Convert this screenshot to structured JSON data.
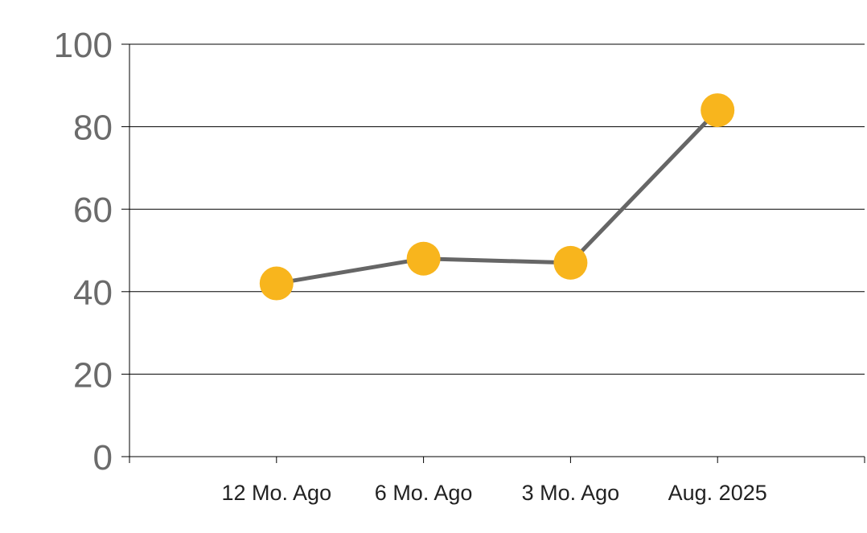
{
  "chart_data": {
    "type": "line",
    "categories": [
      "12 Mo. Ago",
      "6 Mo. Ago",
      "3 Mo. Ago",
      "Aug. 2025"
    ],
    "series": [
      {
        "values": [
          42,
          48,
          47,
          84
        ]
      }
    ],
    "title": "",
    "xlabel": "",
    "ylabel": "",
    "ylim": [
      0,
      100
    ],
    "yticks": [
      "0",
      "20",
      "40",
      "60",
      "80",
      "100"
    ],
    "grid": true,
    "legend": "none",
    "colors": {
      "line": "#666666",
      "marker": "#F8B51D",
      "grid": "#000000",
      "ytick_text": "#6b6b6b",
      "xtick_text": "#222222"
    }
  }
}
